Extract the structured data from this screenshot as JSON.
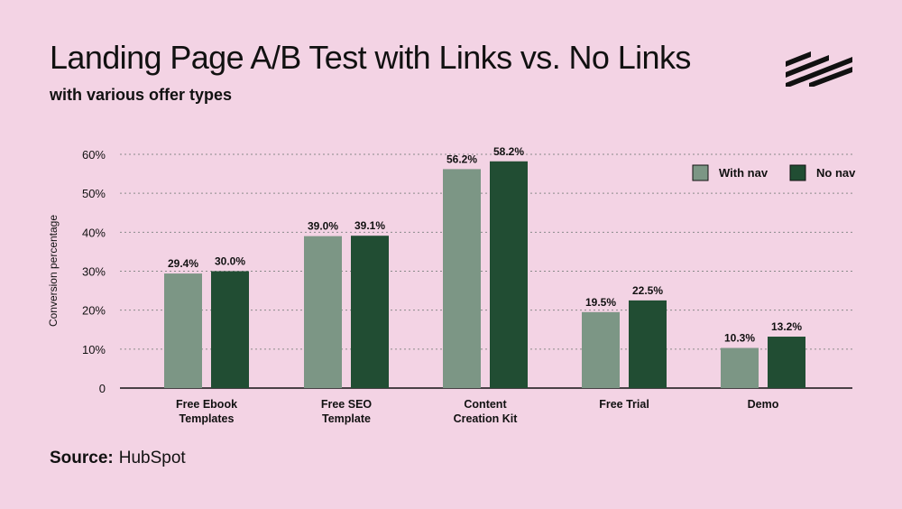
{
  "header": {
    "title": "Landing Page A/B Test with Links vs. No Links",
    "subtitle": "with various offer types"
  },
  "logo": {
    "icon": "brand-stripes-logo"
  },
  "footer": {
    "source_label": "Source:",
    "source_value": "HubSpot"
  },
  "colors": {
    "background": "#f3d3e4",
    "with_nav": "#7c9685",
    "no_nav": "#214d33",
    "text": "#111111",
    "grid": "#888888"
  },
  "chart_data": {
    "type": "bar",
    "title": "Landing Page A/B Test with Links vs. No Links",
    "subtitle": "with various offer types",
    "xlabel": "",
    "ylabel": "Conversion percentage",
    "ylim": [
      0,
      60
    ],
    "yticks": [
      0,
      10,
      20,
      30,
      40,
      50,
      60
    ],
    "ytick_labels": [
      "0",
      "10%",
      "20%",
      "30%",
      "40%",
      "50%",
      "60%"
    ],
    "grid": "horizontal dotted",
    "legend_position": "top-right",
    "categories": [
      [
        "Free Ebook",
        "Templates"
      ],
      [
        "Free SEO",
        "Template"
      ],
      [
        "Content",
        "Creation Kit"
      ],
      [
        "Free Trial"
      ],
      [
        "Demo"
      ]
    ],
    "series": [
      {
        "name": "With nav",
        "color": "#7c9685",
        "values": [
          29.4,
          39.0,
          56.2,
          19.5,
          10.3
        ],
        "labels": [
          "29.4%",
          "39.0%",
          "56.2%",
          "19.5%",
          "10.3%"
        ]
      },
      {
        "name": "No nav",
        "color": "#214d33",
        "values": [
          30.0,
          39.1,
          58.2,
          22.5,
          13.2
        ],
        "labels": [
          "30.0%",
          "39.1%",
          "58.2%",
          "22.5%",
          "13.2%"
        ]
      }
    ]
  }
}
